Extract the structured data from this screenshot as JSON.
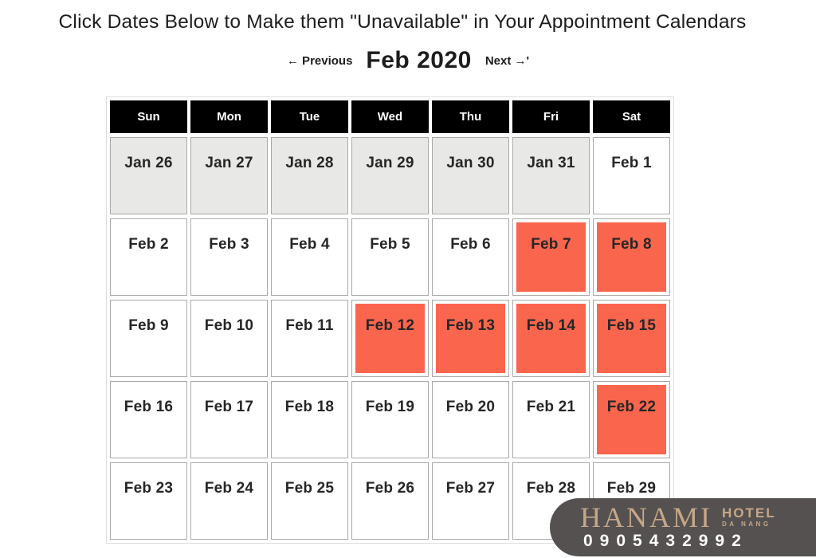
{
  "page": {
    "title": "Click Dates Below to Make them \"Unavailable\" in Your Appointment Calendars"
  },
  "nav": {
    "previous_label": "← Previous",
    "month_title": "Feb 2020",
    "next_label": "Next →'"
  },
  "calendar": {
    "day_headers": [
      "Sun",
      "Mon",
      "Tue",
      "Wed",
      "Thu",
      "Fri",
      "Sat"
    ],
    "weeks": [
      [
        {
          "label": "Jan 26",
          "state": "other-month"
        },
        {
          "label": "Jan 27",
          "state": "other-month"
        },
        {
          "label": "Jan 28",
          "state": "other-month"
        },
        {
          "label": "Jan 29",
          "state": "other-month"
        },
        {
          "label": "Jan 30",
          "state": "other-month"
        },
        {
          "label": "Jan 31",
          "state": "other-month"
        },
        {
          "label": "Feb 1",
          "state": "available"
        }
      ],
      [
        {
          "label": "Feb 2",
          "state": "available"
        },
        {
          "label": "Feb 3",
          "state": "available"
        },
        {
          "label": "Feb 4",
          "state": "available"
        },
        {
          "label": "Feb 5",
          "state": "available"
        },
        {
          "label": "Feb 6",
          "state": "available"
        },
        {
          "label": "Feb 7",
          "state": "unavailable"
        },
        {
          "label": "Feb 8",
          "state": "unavailable"
        }
      ],
      [
        {
          "label": "Feb 9",
          "state": "available"
        },
        {
          "label": "Feb 10",
          "state": "available"
        },
        {
          "label": "Feb 11",
          "state": "available"
        },
        {
          "label": "Feb 12",
          "state": "unavailable"
        },
        {
          "label": "Feb 13",
          "state": "unavailable"
        },
        {
          "label": "Feb 14",
          "state": "unavailable"
        },
        {
          "label": "Feb 15",
          "state": "unavailable"
        }
      ],
      [
        {
          "label": "Feb 16",
          "state": "available"
        },
        {
          "label": "Feb 17",
          "state": "available"
        },
        {
          "label": "Feb 18",
          "state": "available"
        },
        {
          "label": "Feb 19",
          "state": "available"
        },
        {
          "label": "Feb 20",
          "state": "available"
        },
        {
          "label": "Feb 21",
          "state": "available"
        },
        {
          "label": "Feb 22",
          "state": "unavailable"
        }
      ],
      [
        {
          "label": "Feb 23",
          "state": "available"
        },
        {
          "label": "Feb 24",
          "state": "available"
        },
        {
          "label": "Feb 25",
          "state": "available"
        },
        {
          "label": "Feb 26",
          "state": "available"
        },
        {
          "label": "Feb 27",
          "state": "available"
        },
        {
          "label": "Feb 28",
          "state": "available"
        },
        {
          "label": "Feb 29",
          "state": "available"
        }
      ]
    ]
  },
  "watermark": {
    "brand": "HANAMI",
    "brand_sub1": "HOTEL",
    "brand_sub2": "DA NANG",
    "phone": "0905432992"
  },
  "colors": {
    "unavailable_red": "#fa654d",
    "other_month_gray": "#e8e8e6",
    "cell_border": "#a9a9a9",
    "header_bg": "#000000",
    "badge_bg": "#555150",
    "badge_gold": "#c6a787"
  }
}
